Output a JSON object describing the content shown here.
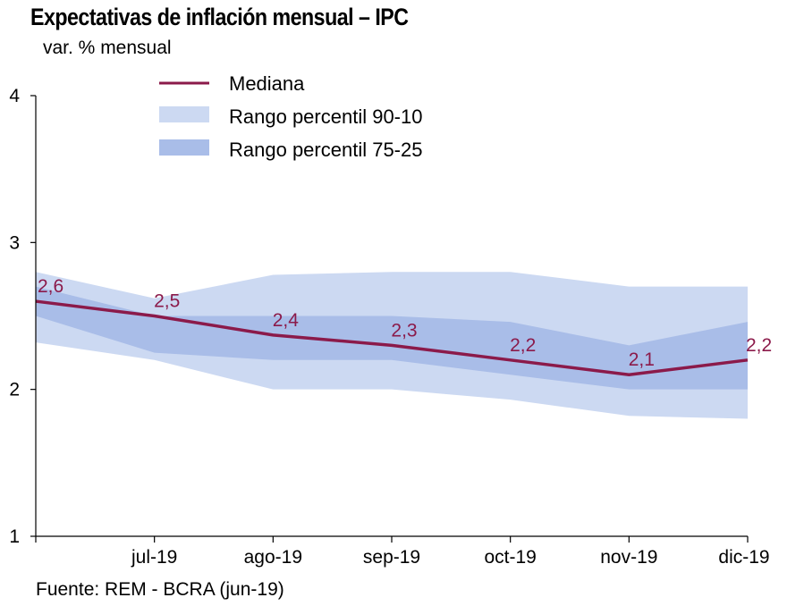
{
  "title": "Expectativas de inflación mensual – IPC",
  "subtitle": "var. % mensual",
  "source": "Fuente: REM - BCRA (jun-19)",
  "colors": {
    "median": "#8b1a4a",
    "band_90_10": "#ccd9f2",
    "band_75_25": "#a9bde8",
    "axis": "#000000"
  },
  "chart_data": {
    "type": "area",
    "title": "Expectativas de inflación mensual – IPC",
    "ylabel": "var. % mensual",
    "ylim": [
      1,
      4
    ],
    "yticks": [
      "1",
      "2",
      "3",
      "4"
    ],
    "x": [
      "",
      "jul-19",
      "ago-19",
      "sep-19",
      "oct-19",
      "nov-19",
      "dic-19"
    ],
    "grid": false,
    "legend_position": "top",
    "series": [
      {
        "name": "Mediana",
        "kind": "line",
        "values": [
          2.6,
          2.5,
          2.37,
          2.3,
          2.2,
          2.1,
          2.2
        ],
        "labels": [
          "2,6",
          "2,5",
          "2,4",
          "2,3",
          "2,2",
          "2,1",
          "2,2"
        ]
      },
      {
        "name": "Rango percentil 90-10",
        "kind": "band",
        "upper": [
          2.8,
          2.62,
          2.78,
          2.8,
          2.8,
          2.7,
          2.7
        ],
        "lower": [
          2.32,
          2.2,
          2.0,
          2.0,
          1.93,
          1.82,
          1.8
        ]
      },
      {
        "name": "Rango percentil 75-25",
        "kind": "band",
        "upper": [
          2.7,
          2.5,
          2.5,
          2.5,
          2.46,
          2.3,
          2.46
        ],
        "lower": [
          2.5,
          2.25,
          2.2,
          2.2,
          2.1,
          2.0,
          2.0
        ]
      }
    ]
  }
}
